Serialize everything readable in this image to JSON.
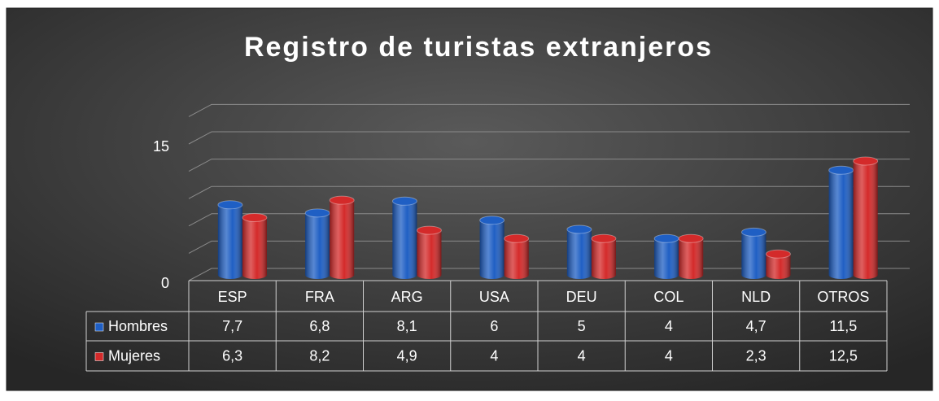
{
  "chart_data": {
    "type": "bar3d",
    "title": "Registro de turistas extranjeros",
    "categories": [
      "ESP",
      "FRA",
      "ARG",
      "USA",
      "DEU",
      "COL",
      "NLD",
      "OTROS"
    ],
    "series": [
      {
        "name": "Hombres",
        "color": "#1f5fc4",
        "values": [
          7.7,
          6.8,
          8.1,
          6,
          5,
          4,
          4.7,
          11.5
        ],
        "value_labels": [
          "7,7",
          "6,8",
          "8,1",
          "6",
          "5",
          "4",
          "4,7",
          "11,5"
        ]
      },
      {
        "name": "Mujeres",
        "color": "#d42a2a",
        "values": [
          6.3,
          8.2,
          4.9,
          4,
          4,
          4,
          2.3,
          12.5
        ],
        "value_labels": [
          "6,3",
          "8,2",
          "4,9",
          "4",
          "4",
          "4",
          "2,3",
          "12,5"
        ]
      }
    ],
    "ylim": [
      0,
      18
    ],
    "yticks": [
      0,
      15
    ],
    "ygrid": [
      0,
      3,
      6,
      9,
      12,
      15,
      18
    ],
    "data_table": true
  }
}
